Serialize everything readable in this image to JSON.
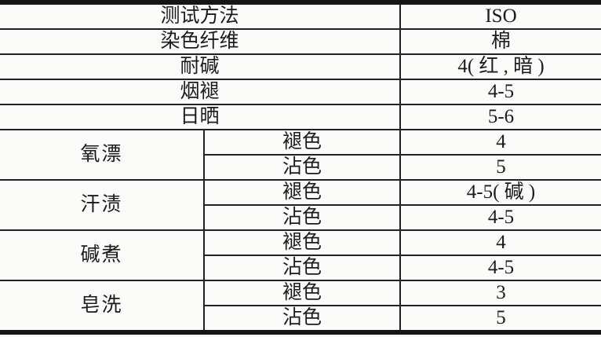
{
  "table": {
    "description_rows": [
      {
        "label": "测试方法",
        "value": "ISO"
      },
      {
        "label": "染色纤维",
        "value": "棉"
      },
      {
        "label": "耐碱",
        "value": "4( 红 , 暗 )"
      },
      {
        "label": "烟褪",
        "value": "4-5"
      },
      {
        "label": "日晒",
        "value": "5-6"
      }
    ],
    "group_rows": [
      {
        "group": "氧漂",
        "subrows": [
          {
            "label": "褪色",
            "value": "4"
          },
          {
            "label": "沾色",
            "value": "5"
          }
        ]
      },
      {
        "group": "汗渍",
        "subrows": [
          {
            "label": "褪色",
            "value": "4-5( 碱 )"
          },
          {
            "label": "沾色",
            "value": "4-5"
          }
        ]
      },
      {
        "group": "碱煮",
        "subrows": [
          {
            "label": "褪色",
            "value": "4"
          },
          {
            "label": "沾色",
            "value": "4-5"
          }
        ]
      },
      {
        "group": "皂洗",
        "subrows": [
          {
            "label": "褪色",
            "value": "3"
          },
          {
            "label": "沾色",
            "value": "5"
          }
        ]
      }
    ],
    "colors": {
      "border": "#222222",
      "text": "#1b1b1b",
      "background": "#fbfbf9"
    }
  }
}
